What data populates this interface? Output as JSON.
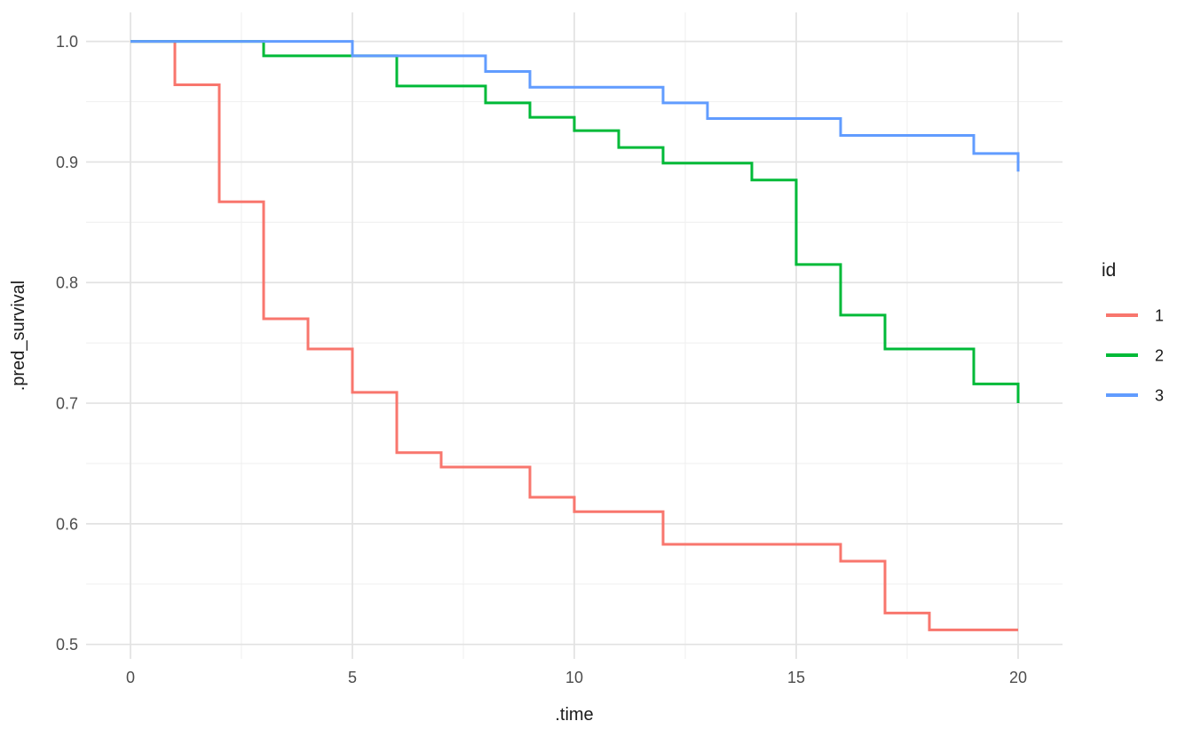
{
  "chart_data": {
    "type": "line",
    "subtype": "step-survival",
    "title": "",
    "xlabel": ".time",
    "ylabel": ".pred_survival",
    "xlim": [
      -1,
      21
    ],
    "ylim": [
      0.488,
      1.024
    ],
    "grid": "on",
    "legend_position": "right",
    "x_ticks": [
      {
        "v": 0,
        "label": "0"
      },
      {
        "v": 5,
        "label": "5"
      },
      {
        "v": 10,
        "label": "10"
      },
      {
        "v": 15,
        "label": "15"
      },
      {
        "v": 20,
        "label": "20"
      }
    ],
    "y_ticks": [
      {
        "v": 0.5,
        "label": "0.5"
      },
      {
        "v": 0.6,
        "label": "0.6"
      },
      {
        "v": 0.7,
        "label": "0.7"
      },
      {
        "v": 0.8,
        "label": "0.8"
      },
      {
        "v": 0.9,
        "label": "0.9"
      },
      {
        "v": 1.0,
        "label": "1.0"
      }
    ],
    "x_minor": [
      2.5,
      7.5,
      12.5,
      17.5
    ],
    "y_minor": [
      0.55,
      0.65,
      0.75,
      0.85,
      0.95
    ],
    "series": [
      {
        "name": "1",
        "color": "#F8766D",
        "start": [
          0,
          1.0
        ],
        "end_time": 20,
        "steps": [
          [
            1,
            0.964
          ],
          [
            2,
            0.867
          ],
          [
            3,
            0.77
          ],
          [
            4,
            0.745
          ],
          [
            5,
            0.709
          ],
          [
            6,
            0.659
          ],
          [
            7,
            0.647
          ],
          [
            9,
            0.622
          ],
          [
            10,
            0.61
          ],
          [
            12,
            0.583
          ],
          [
            16,
            0.569
          ],
          [
            17,
            0.526
          ],
          [
            18,
            0.512
          ]
        ]
      },
      {
        "name": "2",
        "color": "#00BA38",
        "start": [
          0,
          1.0
        ],
        "end_time": 20,
        "steps": [
          [
            3,
            0.988
          ],
          [
            6,
            0.963
          ],
          [
            8,
            0.949
          ],
          [
            9,
            0.937
          ],
          [
            10,
            0.926
          ],
          [
            11,
            0.912
          ],
          [
            12,
            0.899
          ],
          [
            14,
            0.885
          ],
          [
            15,
            0.815
          ],
          [
            16,
            0.773
          ],
          [
            17,
            0.745
          ],
          [
            19,
            0.716
          ],
          [
            20,
            0.7
          ]
        ]
      },
      {
        "name": "3",
        "color": "#619CFF",
        "start": [
          0,
          1.0
        ],
        "end_time": 20,
        "steps": [
          [
            5,
            0.988
          ],
          [
            8,
            0.975
          ],
          [
            9,
            0.962
          ],
          [
            12,
            0.949
          ],
          [
            13,
            0.936
          ],
          [
            16,
            0.922
          ],
          [
            19,
            0.907
          ],
          [
            20,
            0.892
          ]
        ]
      }
    ]
  },
  "axes": {
    "x_title": ".time",
    "y_title": ".pred_survival"
  },
  "legend": {
    "title": "id",
    "items": [
      {
        "label": "1",
        "color": "#F8766D"
      },
      {
        "label": "2",
        "color": "#00BA38"
      },
      {
        "label": "3",
        "color": "#619CFF"
      }
    ]
  },
  "colors": {
    "background": "#FFFFFF",
    "grid_major": "#E2E2E2",
    "grid_minor": "#F0F0F0",
    "tick_label": "#4D4D4D",
    "axis_title": "#1A1A1A",
    "series_red": "#F8766D",
    "series_green": "#00BA38",
    "series_blue": "#619CFF"
  }
}
